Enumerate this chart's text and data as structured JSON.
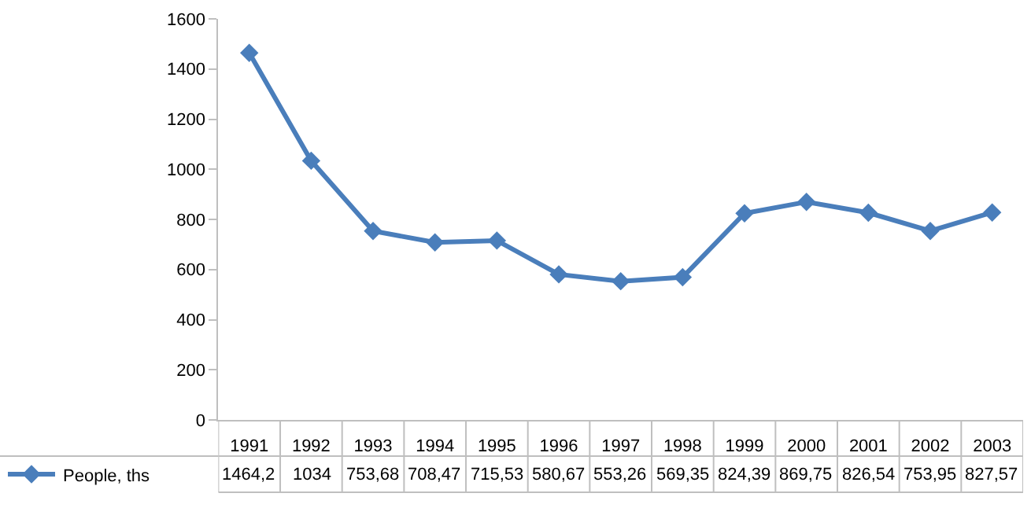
{
  "chart_data": {
    "type": "line",
    "categories": [
      "1991",
      "1992",
      "1993",
      "1994",
      "1995",
      "1996",
      "1997",
      "1998",
      "1999",
      "2000",
      "2001",
      "2002",
      "2003"
    ],
    "series": [
      {
        "name": "People, ths",
        "color": "#4a7ebb",
        "values": [
          1464.2,
          1034,
          753.68,
          708.47,
          715.53,
          580.67,
          553.26,
          569.35,
          824.39,
          869.75,
          826.54,
          753.95,
          827.57
        ],
        "value_labels": [
          "1464,2",
          "1034",
          "753,68",
          "708,47",
          "715,53",
          "580,67",
          "553,26",
          "569,35",
          "824,39",
          "869,75",
          "826,54",
          "753,95",
          "827,57"
        ]
      }
    ],
    "ylim": [
      0,
      1600
    ],
    "yticks": [
      0,
      200,
      400,
      600,
      800,
      1000,
      1200,
      1400,
      1600
    ],
    "legend": "bottom left",
    "marker": "diamond",
    "line_style": "solid"
  }
}
